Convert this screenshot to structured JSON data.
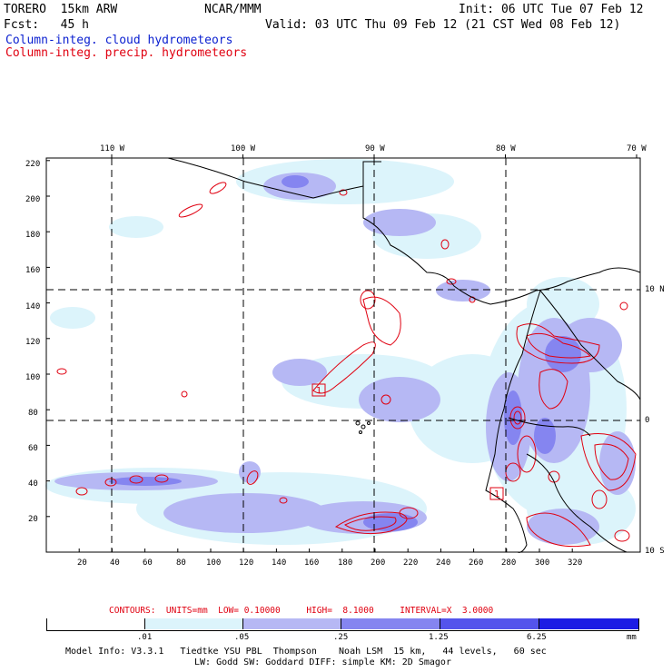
{
  "header": {
    "model": "TORERO  15km ARW",
    "org": "NCAR/MMM",
    "init": "Init: 06 UTC Tue 07 Feb 12",
    "fcst": "Fcst:   45 h",
    "valid": "Valid: 03 UTC Thu 09 Feb 12 (21 CST Wed 08 Feb 12)",
    "field1": "Column-integ. cloud hydrometeors",
    "field2": "Column-integ. precip. hydrometeors"
  },
  "axes": {
    "top_lon_labels": [
      "110 W",
      "100 W",
      "90 W",
      "80 W",
      "70 W"
    ],
    "right_lat_labels": [
      "10 N",
      "0",
      "10 S"
    ],
    "left_grid_labels": [
      "220",
      "200",
      "180",
      "160",
      "140",
      "120",
      "100",
      "80",
      "60",
      "40",
      "20"
    ],
    "bottom_grid_labels": [
      "20",
      "40",
      "60",
      "80",
      "100",
      "120",
      "140",
      "160",
      "180",
      "200",
      "220",
      "240",
      "260",
      "280",
      "300",
      "320"
    ]
  },
  "contours_line": "CONTOURS:  UNITS=mm  LOW= 0.10000     HIGH=  8.1000     INTERVAL=X  3.0000",
  "colorbar": {
    "ticks": [
      ".01",
      ".05",
      ".25",
      "1.25",
      "6.25"
    ],
    "units": "mm",
    "colors": [
      "#ffffff",
      "#dcf4fb",
      "#b6b8f4",
      "#8585f0",
      "#5454ec",
      "#1c1ce4"
    ]
  },
  "footer": {
    "line1": "Model Info: V3.3.1   Tiedtke YSU PBL  Thompson    Noah LSM  15 km,   44 levels,   60 sec",
    "line2": "LW: Godd SW: Goddard DIFF: simple KM: 2D Smagor"
  },
  "markers": [
    "1",
    "1"
  ]
}
